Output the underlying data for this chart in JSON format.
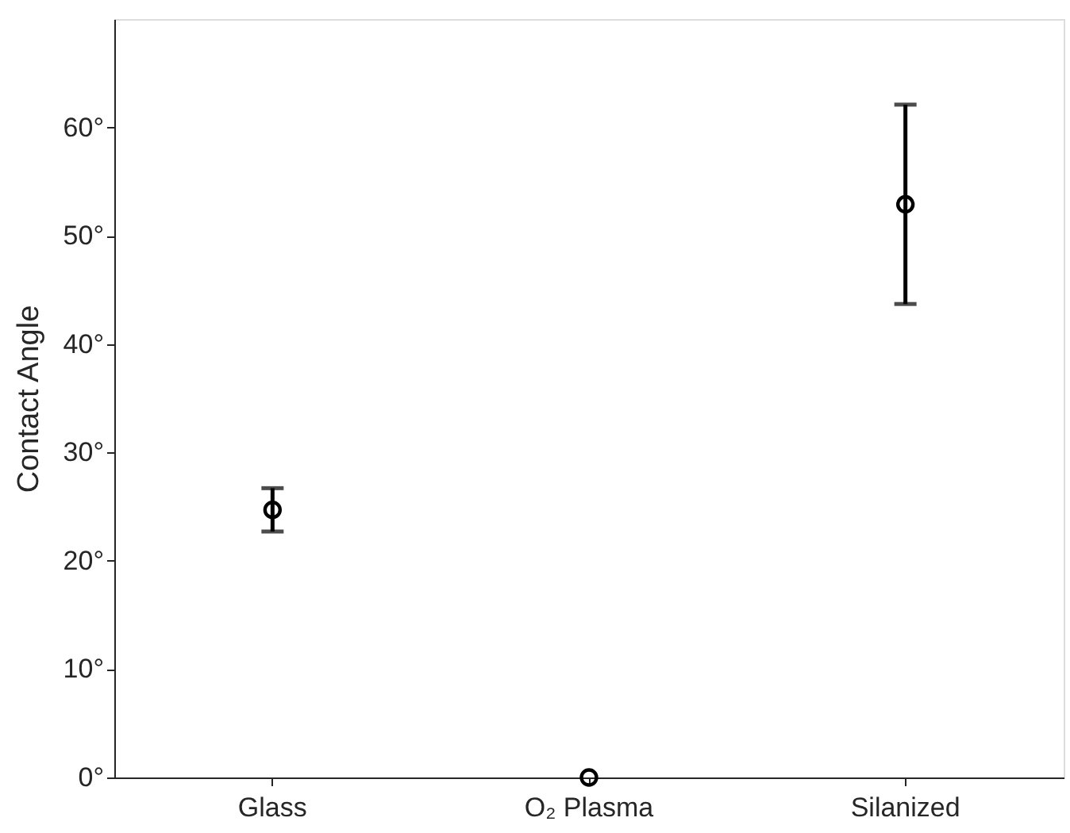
{
  "chart_data": {
    "type": "scatter",
    "ylabel": "Contact Angle",
    "categories": [
      "Glass",
      "O₂ Plasma",
      "Silanized"
    ],
    "values": [
      24.7,
      0,
      52.9
    ],
    "errors": [
      2.0,
      null,
      9.2
    ],
    "color": "#000000",
    "marker": "circle",
    "ylim": [
      0,
      70
    ],
    "yticks": [
      {
        "value": 0,
        "label": "0°"
      },
      {
        "value": 10,
        "label": "10°"
      },
      {
        "value": 20,
        "label": "20°"
      },
      {
        "value": 30,
        "label": "30°"
      },
      {
        "value": 40,
        "label": "40°"
      },
      {
        "value": 50,
        "label": "50°"
      },
      {
        "value": 60,
        "label": "60°"
      }
    ]
  }
}
